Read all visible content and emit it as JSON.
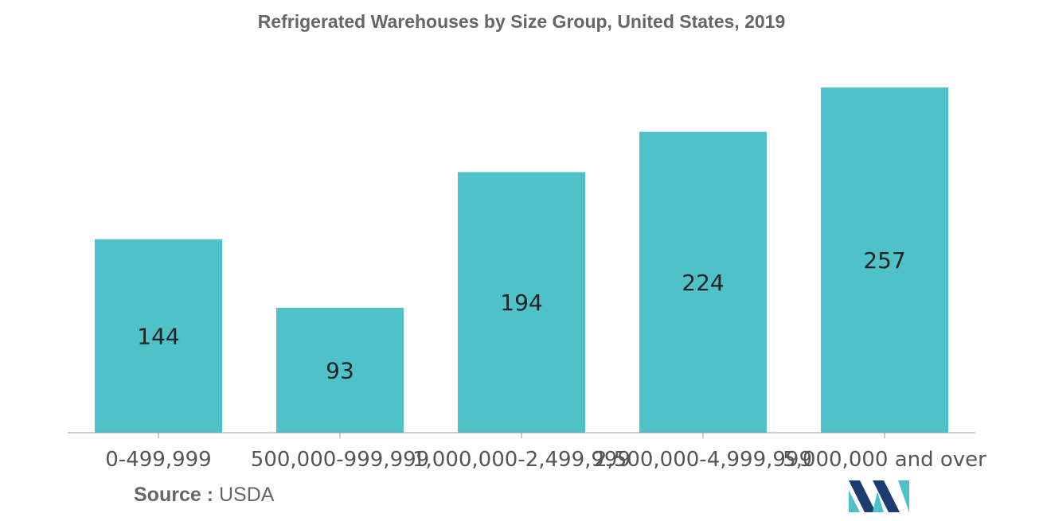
{
  "chart_data": {
    "type": "bar",
    "title": "Refrigerated Warehouses by Size Group, United States, 2019",
    "categories": [
      "0-499,999",
      "500,000-999,999",
      "1,000,000-2,499,999",
      "2,500,000-4,999,999",
      "5,000,000 and over"
    ],
    "series": [
      {
        "values": [
          144,
          93,
          194,
          224,
          257
        ]
      }
    ],
    "data_labels": [
      "144",
      "93",
      "194",
      "224",
      "257"
    ],
    "xlabel": "",
    "ylabel": "",
    "ylim": [
      0,
      257
    ],
    "grid": false,
    "legend": "none",
    "bar_color": "#4FC1C9"
  },
  "source": {
    "label": "Source :",
    "value": "USDA"
  },
  "logo": {
    "icon": "mordor-intelligence-logo-icon",
    "colors": [
      "#1B3C71",
      "#4FC1C9"
    ]
  }
}
